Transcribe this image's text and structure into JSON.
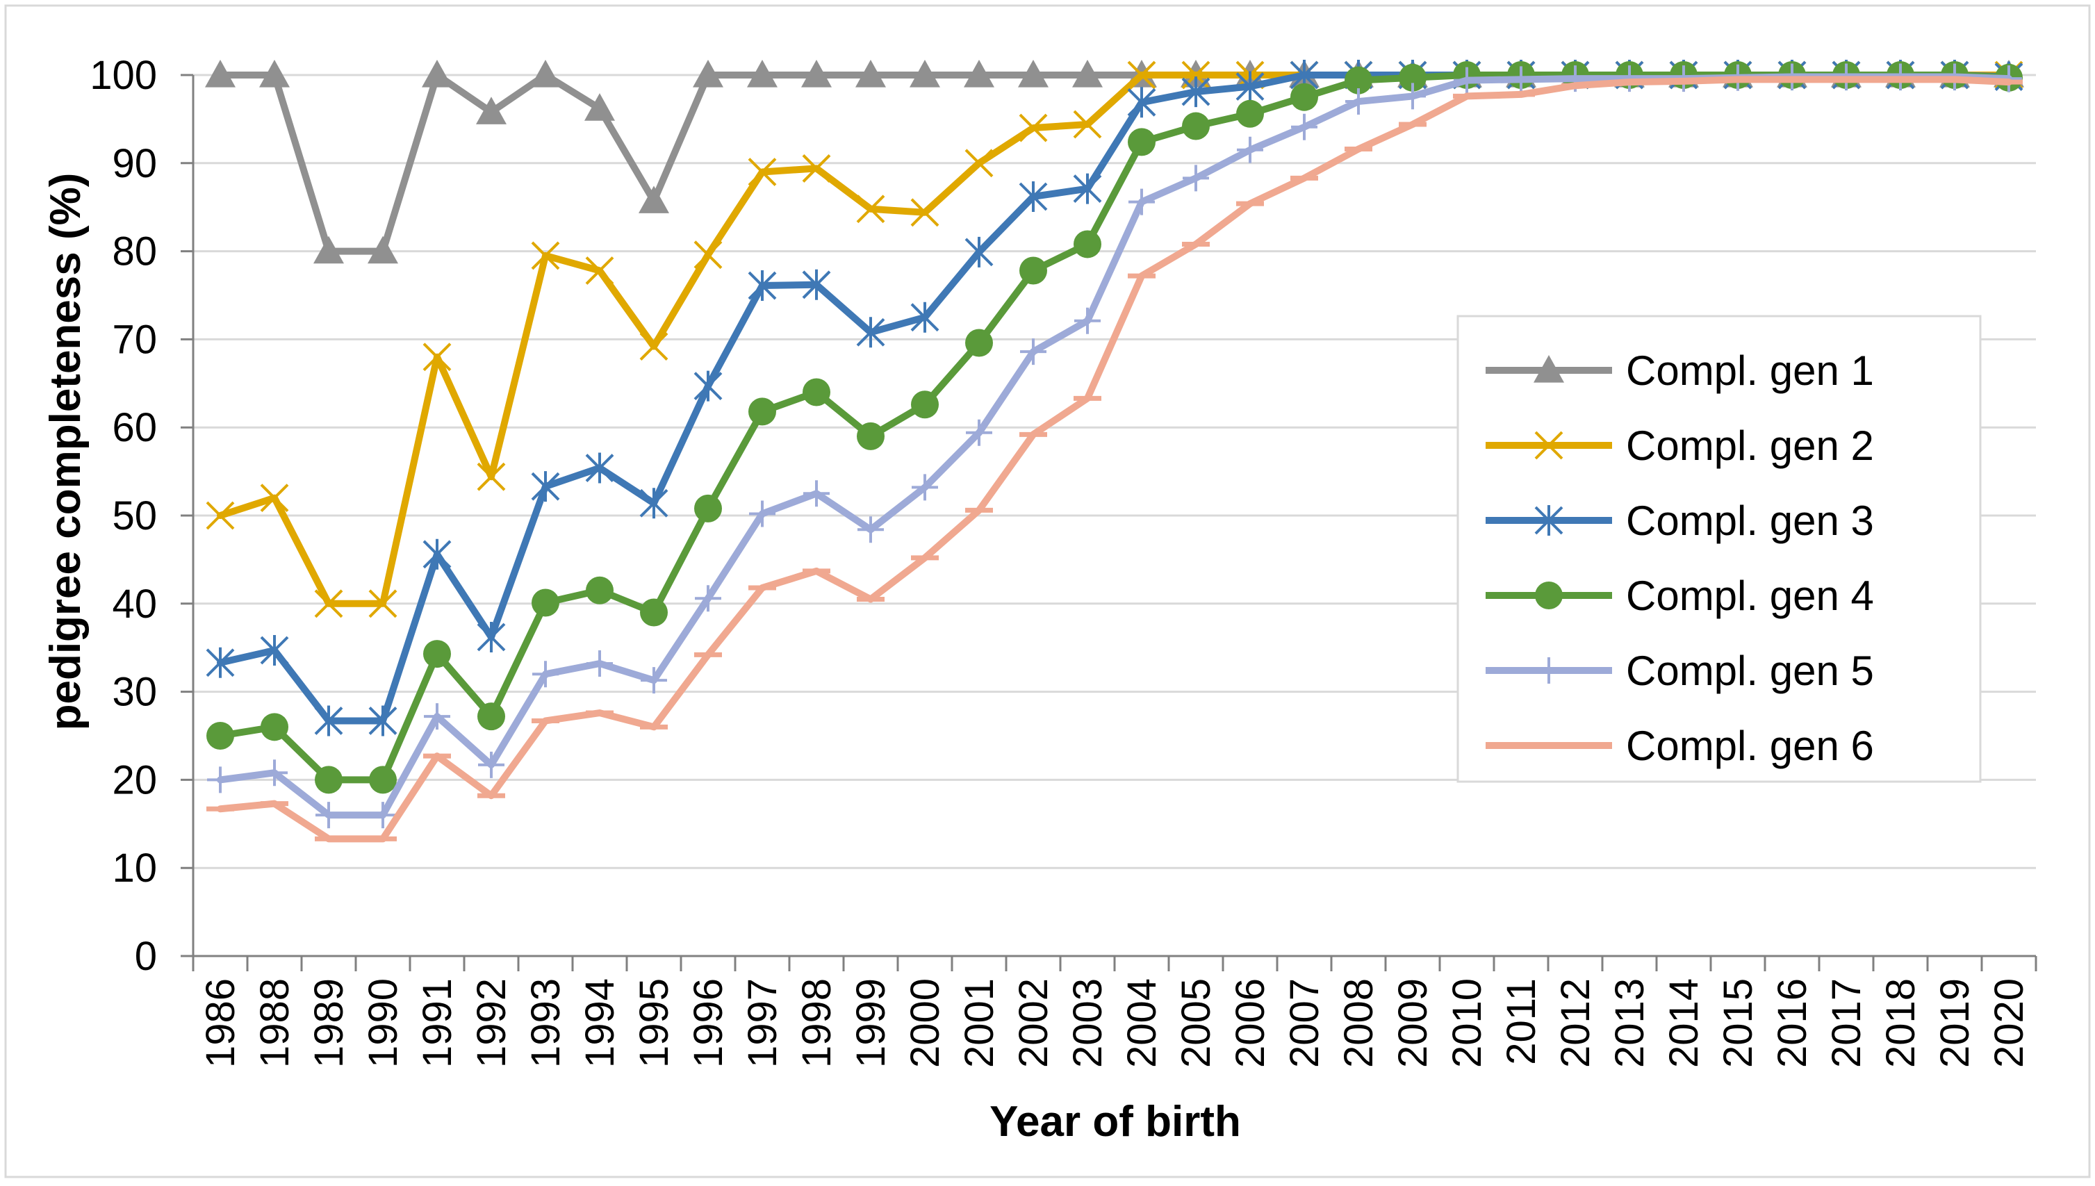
{
  "chart_data": {
    "type": "line",
    "title": "",
    "xlabel": "Year of birth",
    "ylabel": "pedigree completeness (%)",
    "ylim": [
      0,
      100
    ],
    "y_ticks": [
      0,
      10,
      20,
      30,
      40,
      50,
      60,
      70,
      80,
      90,
      100
    ],
    "grid": "horizontal",
    "legend_position": "right",
    "categories": [
      "1986",
      "1988",
      "1989",
      "1990",
      "1991",
      "1992",
      "1993",
      "1994",
      "1995",
      "1996",
      "1997",
      "1998",
      "1999",
      "2000",
      "2001",
      "2002",
      "2003",
      "2004",
      "2005",
      "2006",
      "2007",
      "2008",
      "2009",
      "2010",
      "2011",
      "2012",
      "2013",
      "2014",
      "2015",
      "2016",
      "2017",
      "2018",
      "2019",
      "2020"
    ],
    "series": [
      {
        "name": "Compl. gen 1",
        "color": "#909090",
        "marker": "triangle",
        "values": [
          100,
          100,
          80,
          80,
          100,
          95.8,
          100,
          96.2,
          85.7,
          100,
          100,
          100,
          100,
          100,
          100,
          100,
          100,
          100,
          100,
          100,
          100,
          100,
          100,
          100,
          100,
          100,
          100,
          100,
          100,
          100,
          100,
          100,
          100,
          100
        ]
      },
      {
        "name": "Compl. gen 2",
        "color": "#E0A800",
        "marker": "x",
        "values": [
          50,
          52,
          40,
          40,
          68,
          54.4,
          79.5,
          77.8,
          69.2,
          79.6,
          89,
          89.4,
          84.8,
          84.4,
          90,
          94,
          94.4,
          100,
          100,
          100,
          100,
          100,
          100,
          100,
          100,
          100,
          100,
          100,
          100,
          100,
          100,
          100,
          100,
          100
        ]
      },
      {
        "name": "Compl. gen 3",
        "color": "#3F78B5",
        "marker": "star",
        "values": [
          33.3,
          34.7,
          26.7,
          26.7,
          45.6,
          36.2,
          53.3,
          55.4,
          51.4,
          64.7,
          76.1,
          76.2,
          70.8,
          72.5,
          79.9,
          86.2,
          87.1,
          96.9,
          98.1,
          98.7,
          100,
          100,
          100,
          100,
          100,
          100,
          100,
          100,
          100,
          100,
          100,
          100,
          100,
          99.8
        ]
      },
      {
        "name": "Compl. gen 4",
        "color": "#5A9A3A",
        "marker": "circle",
        "values": [
          25,
          26,
          20,
          20,
          34.3,
          27.2,
          40.1,
          41.5,
          39,
          50.8,
          61.8,
          64,
          59,
          62.6,
          69.6,
          77.8,
          80.8,
          92.4,
          94.2,
          95.6,
          97.5,
          99.4,
          99.7,
          100,
          100,
          100,
          100,
          100,
          100,
          100,
          100,
          100,
          100,
          99.7
        ]
      },
      {
        "name": "Compl. gen 5",
        "color": "#9DAAD8",
        "marker": "plus",
        "values": [
          20,
          20.8,
          16,
          16,
          27.2,
          21.7,
          32,
          33.2,
          31.3,
          40.6,
          50.2,
          52.5,
          48.4,
          53.2,
          59.4,
          68.6,
          72.1,
          85.6,
          88.3,
          91.5,
          94.1,
          97,
          97.6,
          99.4,
          99.5,
          99.6,
          99.6,
          99.6,
          99.7,
          99.8,
          99.8,
          99.8,
          99.8,
          99.6
        ]
      },
      {
        "name": "Compl. gen 6",
        "color": "#F0A890",
        "marker": "dash",
        "values": [
          16.7,
          17.3,
          13.3,
          13.3,
          22.7,
          18.2,
          26.7,
          27.6,
          26,
          34.2,
          41.8,
          43.7,
          40.5,
          45.2,
          50.6,
          59.2,
          63.3,
          77.2,
          80.8,
          85.4,
          88.3,
          91.6,
          94.4,
          97.6,
          97.8,
          98.8,
          99.2,
          99.3,
          99.5,
          99.5,
          99.5,
          99.5,
          99.5,
          99.2
        ]
      }
    ]
  }
}
